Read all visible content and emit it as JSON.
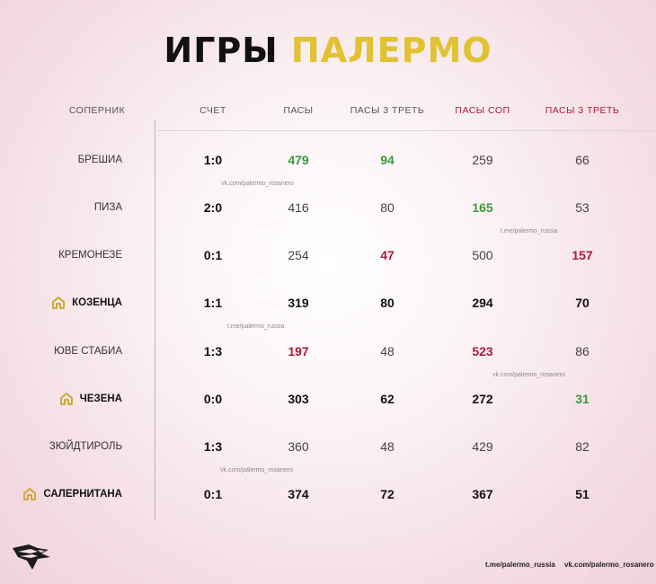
{
  "title": {
    "part1": "ИГРЫ",
    "part2": "ПАЛЕРМО"
  },
  "headers": {
    "opponent": "СОПЕРНИК",
    "score": "СЧЕТ",
    "passes": "ПАСЫ",
    "passes_third": "ПАСЫ 3 ТРЕТЬ",
    "opp_passes": "ПАСЫ СОП",
    "opp_passes_third": "ПАСЫ 3 ТРЕТЬ"
  },
  "colors": {
    "gold": "#e0c233",
    "green": "#3a9a3a",
    "red": "#b01a3c"
  },
  "rows": [
    {
      "opponent": "БРЕШИА",
      "home": false,
      "score": "1:0",
      "passes": "479",
      "passes_third": "94",
      "opp_passes": "259",
      "opp_passes_third": "66"
    },
    {
      "opponent": "ПИЗА",
      "home": false,
      "score": "2:0",
      "passes": "416",
      "passes_third": "80",
      "opp_passes": "165",
      "opp_passes_third": "53"
    },
    {
      "opponent": "КРЕМОНЕЗЕ",
      "home": false,
      "score": "0:1",
      "passes": "254",
      "passes_third": "47",
      "opp_passes": "500",
      "opp_passes_third": "157"
    },
    {
      "opponent": "КОЗЕНЦА",
      "home": true,
      "score": "1:1",
      "passes": "319",
      "passes_third": "80",
      "opp_passes": "294",
      "opp_passes_third": "70"
    },
    {
      "opponent": "ЮВЕ СТАБИА",
      "home": false,
      "score": "1:3",
      "passes": "197",
      "passes_third": "48",
      "opp_passes": "523",
      "opp_passes_third": "86"
    },
    {
      "opponent": "ЧЕЗЕНА",
      "home": true,
      "score": "0:0",
      "passes": "303",
      "passes_third": "62",
      "opp_passes": "272",
      "opp_passes_third": "31"
    },
    {
      "opponent": "ЗЮЙДТИРОЛЬ",
      "home": false,
      "score": "1:3",
      "passes": "360",
      "passes_third": "48",
      "opp_passes": "429",
      "opp_passes_third": "82"
    },
    {
      "opponent": "САЛЕРНИТАНА",
      "home": true,
      "score": "0:1",
      "passes": "374",
      "passes_third": "72",
      "opp_passes": "367",
      "opp_passes_third": "51"
    }
  ],
  "watermarks": [
    "vk.com/palermo_rosanero",
    "t.me/palermo_russia",
    "t.me/palermo_russia",
    "vk.com/palermo_rosanero",
    "vk.com/palermo_rosanero"
  ],
  "footer": {
    "telegram": "t.me/palermo_russia",
    "vk": "vk.com/palermo_rosanero"
  },
  "logo": "palermo-eagle-logo"
}
